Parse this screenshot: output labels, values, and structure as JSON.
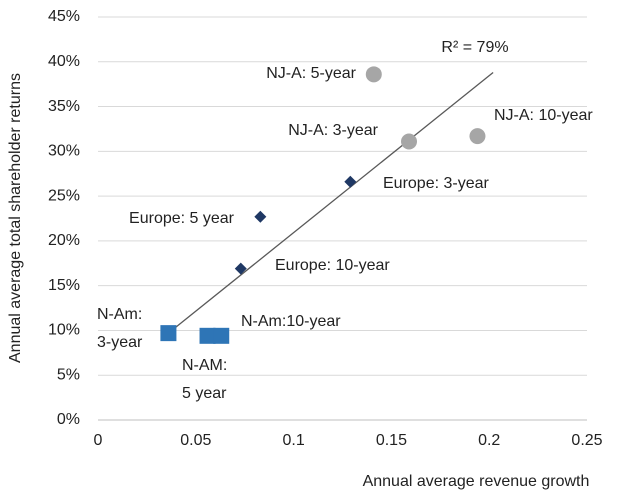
{
  "chart_data": {
    "type": "scatter",
    "y_label": "Annual average total shareholder returns",
    "x_label": "Annual average revenue growth",
    "xlim": [
      0,
      0.25
    ],
    "xticks": [
      0,
      0.05,
      0.1,
      0.15,
      0.2,
      0.25
    ],
    "ylim": [
      0,
      45
    ],
    "yticks": [
      {
        "value": 0,
        "label": "0%"
      },
      {
        "value": 5,
        "label": "5%"
      },
      {
        "value": 10,
        "label": "10%"
      },
      {
        "value": 15,
        "label": "15%"
      },
      {
        "value": 20,
        "label": "20%"
      },
      {
        "value": 25,
        "label": "25%"
      },
      {
        "value": 30,
        "label": "30%"
      },
      {
        "value": 35,
        "label": "35%"
      },
      {
        "value": 40,
        "label": "40%"
      },
      {
        "value": 45,
        "label": "45%"
      }
    ],
    "grid": true,
    "series": [
      {
        "marker": "circle",
        "color": "#a6a6a6",
        "x": [
          0.141,
          0.159,
          0.194
        ],
        "values": [
          38.6,
          31.1,
          31.7
        ],
        "labels": [
          [
            "NJ-A: 5-year"
          ],
          [
            "NJ-A: 3-year"
          ],
          [
            "NJ-A: 10-year"
          ]
        ]
      },
      {
        "marker": "diamond",
        "color": "#1f3864",
        "x": [
          0.129,
          0.083,
          0.073
        ],
        "values": [
          26.6,
          22.7,
          16.9
        ],
        "labels": [
          [
            "Europe: 3-year"
          ],
          [
            "Europe: 5 year"
          ],
          [
            "Europe: 10-year"
          ]
        ]
      },
      {
        "marker": "square",
        "color": "#2e75b6",
        "x": [
          0.036,
          0.056,
          0.063
        ],
        "values": [
          9.7,
          9.4,
          9.4
        ],
        "labels": [
          [
            "N-Am:",
            "3-year"
          ],
          [
            "N-AM:",
            "5 year"
          ],
          [
            "N-Am:10-year"
          ]
        ]
      }
    ],
    "trendline": {
      "color": "#595959",
      "x": [
        0.036,
        0.202
      ],
      "values": [
        9.7,
        38.8
      ],
      "label": "R² = 79%"
    }
  }
}
